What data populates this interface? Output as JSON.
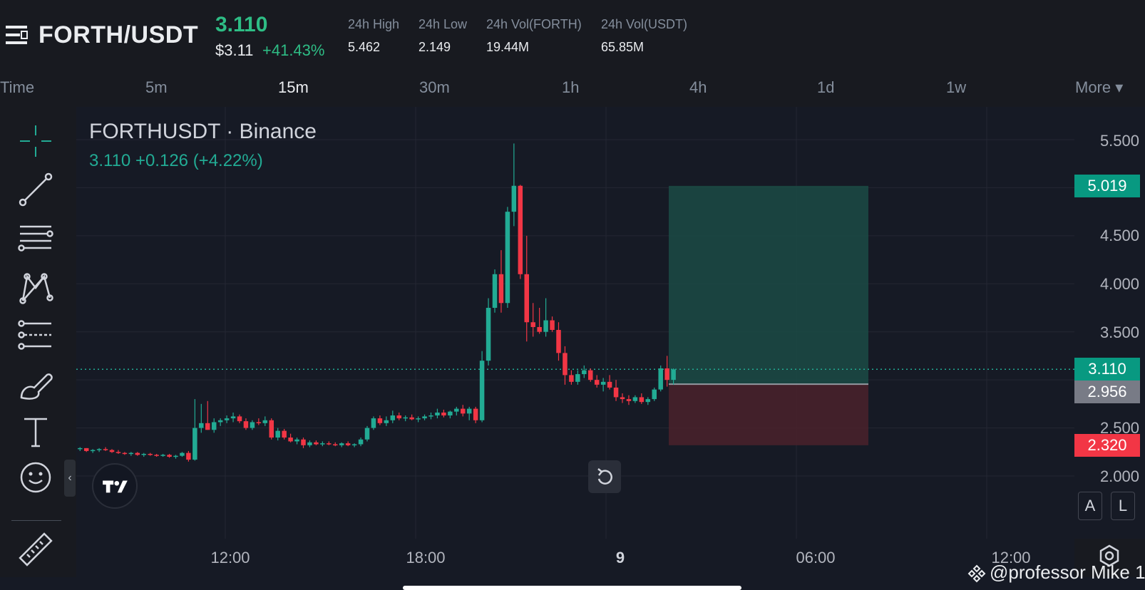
{
  "header": {
    "pair": "FORTH/USDT",
    "last_price": "3.110",
    "usd_price": "$3.11",
    "change_pct": "+41.43%",
    "stats": [
      {
        "label": "24h High",
        "value": "5.462"
      },
      {
        "label": "24h Low",
        "value": "2.149"
      },
      {
        "label": "24h Vol(FORTH)",
        "value": "19.44M"
      },
      {
        "label": "24h Vol(USDT)",
        "value": "65.85M"
      }
    ]
  },
  "intervals": {
    "items": [
      "Time",
      "5m",
      "15m",
      "30m",
      "1h",
      "4h",
      "1d",
      "1w",
      "More ▾"
    ],
    "active": "15m"
  },
  "toolbar": {
    "tools": [
      "crosshair-icon",
      "trend-line-icon",
      "fib-levels-icon",
      "pattern-icon",
      "prediction-icon",
      "brush-icon",
      "text-icon",
      "emoji-icon",
      "ruler-icon"
    ],
    "collapse_label": "‹"
  },
  "chart": {
    "symbol": "FORTHUSDT · Binance",
    "quote": "3.110  +0.126 (+4.22%)",
    "price_ticks": [
      "5.500",
      "4.500",
      "4.000",
      "3.500",
      "2.500",
      "2.000"
    ],
    "time_ticks": [
      "12:00",
      "18:00",
      "9",
      "06:00",
      "12:00"
    ],
    "tags": {
      "take_profit": "5.019",
      "current": "3.110",
      "entry": "2.956",
      "stop_loss": "2.320"
    },
    "scale_buttons": [
      "A",
      "L"
    ],
    "colors": {
      "up": "#22ab94",
      "down": "#f23645",
      "profit_zone": "#1b4b45",
      "loss_zone": "#4a222b",
      "grid": "#242733"
    }
  },
  "chart_data": {
    "type": "candlestick",
    "title": "FORTHUSDT · Binance",
    "ylim": [
      1.8,
      5.8
    ],
    "y_ticks": [
      2.0,
      2.5,
      3.5,
      4.0,
      4.5,
      5.5
    ],
    "x_ticks": [
      "12:00",
      "18:00",
      "9",
      "06:00",
      "12:00"
    ],
    "grid": true,
    "candles": [
      [
        2.28,
        2.3,
        2.26,
        2.29
      ],
      [
        2.29,
        2.29,
        2.25,
        2.26
      ],
      [
        2.26,
        2.28,
        2.24,
        2.27
      ],
      [
        2.27,
        2.29,
        2.25,
        2.28
      ],
      [
        2.28,
        2.3,
        2.26,
        2.27
      ],
      [
        2.27,
        2.28,
        2.24,
        2.25
      ],
      [
        2.25,
        2.27,
        2.23,
        2.24
      ],
      [
        2.24,
        2.25,
        2.22,
        2.23
      ],
      [
        2.23,
        2.25,
        2.21,
        2.24
      ],
      [
        2.24,
        2.25,
        2.21,
        2.22
      ],
      [
        2.22,
        2.24,
        2.2,
        2.23
      ],
      [
        2.23,
        2.24,
        2.21,
        2.22
      ],
      [
        2.22,
        2.23,
        2.2,
        2.21
      ],
      [
        2.21,
        2.23,
        2.2,
        2.22
      ],
      [
        2.22,
        2.23,
        2.19,
        2.2
      ],
      [
        2.2,
        2.22,
        2.18,
        2.21
      ],
      [
        2.21,
        2.25,
        2.2,
        2.24
      ],
      [
        2.24,
        2.26,
        2.15,
        2.17
      ],
      [
        2.17,
        2.8,
        2.16,
        2.5
      ],
      [
        2.5,
        2.75,
        2.45,
        2.55
      ],
      [
        2.55,
        2.78,
        2.48,
        2.48
      ],
      [
        2.48,
        2.6,
        2.45,
        2.56
      ],
      [
        2.56,
        2.6,
        2.52,
        2.58
      ],
      [
        2.58,
        2.63,
        2.55,
        2.6
      ],
      [
        2.6,
        2.66,
        2.56,
        2.62
      ],
      [
        2.62,
        2.64,
        2.55,
        2.57
      ],
      [
        2.57,
        2.6,
        2.48,
        2.5
      ],
      [
        2.5,
        2.58,
        2.48,
        2.56
      ],
      [
        2.56,
        2.6,
        2.53,
        2.55
      ],
      [
        2.55,
        2.62,
        2.52,
        2.58
      ],
      [
        2.58,
        2.6,
        2.38,
        2.4
      ],
      [
        2.4,
        2.5,
        2.37,
        2.47
      ],
      [
        2.47,
        2.49,
        2.38,
        2.4
      ],
      [
        2.4,
        2.44,
        2.35,
        2.36
      ],
      [
        2.36,
        2.4,
        2.33,
        2.38
      ],
      [
        2.38,
        2.4,
        2.29,
        2.32
      ],
      [
        2.32,
        2.37,
        2.3,
        2.35
      ],
      [
        2.35,
        2.37,
        2.32,
        2.33
      ],
      [
        2.33,
        2.36,
        2.31,
        2.34
      ],
      [
        2.34,
        2.36,
        2.32,
        2.33
      ],
      [
        2.33,
        2.35,
        2.31,
        2.32
      ],
      [
        2.32,
        2.35,
        2.3,
        2.34
      ],
      [
        2.34,
        2.36,
        2.31,
        2.32
      ],
      [
        2.32,
        2.34,
        2.3,
        2.33
      ],
      [
        2.33,
        2.4,
        2.31,
        2.38
      ],
      [
        2.38,
        2.52,
        2.36,
        2.5
      ],
      [
        2.5,
        2.62,
        2.48,
        2.6
      ],
      [
        2.6,
        2.63,
        2.53,
        2.55
      ],
      [
        2.55,
        2.62,
        2.52,
        2.58
      ],
      [
        2.58,
        2.68,
        2.55,
        2.63
      ],
      [
        2.63,
        2.66,
        2.58,
        2.6
      ],
      [
        2.6,
        2.63,
        2.57,
        2.61
      ],
      [
        2.61,
        2.64,
        2.58,
        2.59
      ],
      [
        2.59,
        2.62,
        2.56,
        2.6
      ],
      [
        2.6,
        2.64,
        2.58,
        2.62
      ],
      [
        2.62,
        2.66,
        2.59,
        2.63
      ],
      [
        2.63,
        2.7,
        2.6,
        2.66
      ],
      [
        2.66,
        2.69,
        2.61,
        2.63
      ],
      [
        2.63,
        2.68,
        2.6,
        2.67
      ],
      [
        2.67,
        2.72,
        2.63,
        2.7
      ],
      [
        2.7,
        2.74,
        2.62,
        2.65
      ],
      [
        2.65,
        2.72,
        2.58,
        2.7
      ],
      [
        2.7,
        2.72,
        2.55,
        2.58
      ],
      [
        2.58,
        3.3,
        2.56,
        3.2
      ],
      [
        3.2,
        3.85,
        3.15,
        3.75
      ],
      [
        3.75,
        4.15,
        3.7,
        4.1
      ],
      [
        4.1,
        4.35,
        3.7,
        3.8
      ],
      [
        3.8,
        4.8,
        3.75,
        4.75
      ],
      [
        4.75,
        5.46,
        4.6,
        5.02
      ],
      [
        5.02,
        5.03,
        4.05,
        4.1
      ],
      [
        4.1,
        4.5,
        3.4,
        3.6
      ],
      [
        3.6,
        3.8,
        3.45,
        3.55
      ],
      [
        3.55,
        3.75,
        3.48,
        3.5
      ],
      [
        3.5,
        3.85,
        3.45,
        3.62
      ],
      [
        3.62,
        3.66,
        3.5,
        3.52
      ],
      [
        3.52,
        3.6,
        3.2,
        3.28
      ],
      [
        3.28,
        3.35,
        2.95,
        3.05
      ],
      [
        3.05,
        3.1,
        2.95,
        2.98
      ],
      [
        2.98,
        3.1,
        2.95,
        3.06
      ],
      [
        3.06,
        3.15,
        3.02,
        3.1
      ],
      [
        3.1,
        3.12,
        2.98,
        3.0
      ],
      [
        3.0,
        3.05,
        2.92,
        2.95
      ],
      [
        2.95,
        3.02,
        2.88,
        2.98
      ],
      [
        2.98,
        3.05,
        2.9,
        2.92
      ],
      [
        2.92,
        3.0,
        2.78,
        2.82
      ],
      [
        2.82,
        2.86,
        2.76,
        2.8
      ],
      [
        2.8,
        2.84,
        2.74,
        2.78
      ],
      [
        2.78,
        2.84,
        2.76,
        2.82
      ],
      [
        2.82,
        2.86,
        2.75,
        2.77
      ],
      [
        2.77,
        2.82,
        2.74,
        2.8
      ],
      [
        2.8,
        2.92,
        2.78,
        2.9
      ],
      [
        2.9,
        3.15,
        2.88,
        3.12
      ],
      [
        3.12,
        3.25,
        2.93,
        3.0
      ],
      [
        3.0,
        3.12,
        2.95,
        3.11
      ]
    ],
    "position": {
      "take_profit": 5.019,
      "entry": 2.956,
      "stop_loss": 2.32,
      "current": 3.11
    }
  },
  "watermark": "@professor Mike 1"
}
